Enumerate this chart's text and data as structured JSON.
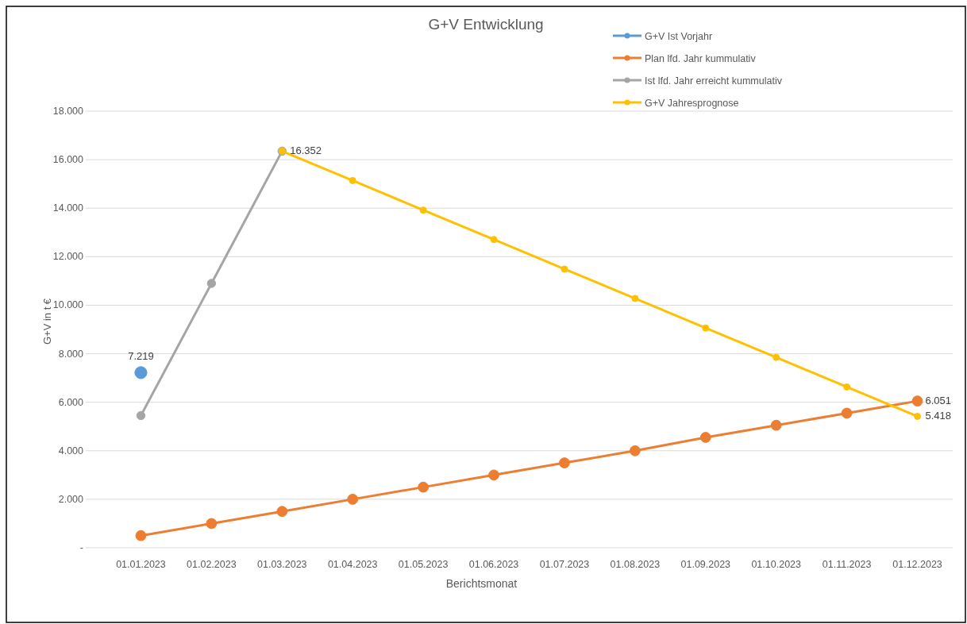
{
  "chart_data": {
    "type": "line",
    "title": "G+V Entwicklung",
    "xlabel": "Berichtsmonat",
    "ylabel": "G+V in t €",
    "categories": [
      "01.01.2023",
      "01.02.2023",
      "01.03.2023",
      "01.04.2023",
      "01.05.2023",
      "01.06.2023",
      "01.07.2023",
      "01.08.2023",
      "01.09.2023",
      "01.10.2023",
      "01.11.2023",
      "01.12.2023"
    ],
    "series": [
      {
        "name": "G+V Ist Vorjahr",
        "color": "#5b9bd5",
        "values": [
          7219,
          null,
          null,
          null,
          null,
          null,
          null,
          null,
          null,
          null,
          null,
          null
        ],
        "value_labels": [
          "7.219",
          null,
          null,
          null,
          null,
          null,
          null,
          null,
          null,
          null,
          null,
          null
        ]
      },
      {
        "name": "Plan lfd. Jahr kummulativ",
        "color": "#ed7d31",
        "values": [
          500,
          1000,
          1500,
          2000,
          2500,
          3000,
          3500,
          4000,
          4550,
          5050,
          5550,
          6051
        ],
        "value_labels": [
          null,
          null,
          null,
          null,
          null,
          null,
          null,
          null,
          null,
          null,
          null,
          "6.051"
        ]
      },
      {
        "name": "Ist lfd. Jahr erreicht kummulativ",
        "color": "#a5a5a5",
        "values": [
          5450,
          10900,
          16352,
          null,
          null,
          null,
          null,
          null,
          null,
          null,
          null,
          null
        ]
      },
      {
        "name": "G+V Jahresprognose",
        "color": "#ffc000",
        "values": [
          null,
          null,
          16352,
          15140,
          13920,
          12710,
          11490,
          10280,
          9060,
          7850,
          6630,
          5418
        ],
        "value_labels": [
          null,
          null,
          "16.352",
          null,
          null,
          null,
          null,
          null,
          null,
          null,
          null,
          "5.418"
        ]
      }
    ],
    "ylim": [
      0,
      18000
    ],
    "yticks": [
      {
        "value": 0,
        "label": "-"
      },
      {
        "value": 2000,
        "label": "2.000"
      },
      {
        "value": 4000,
        "label": "4.000"
      },
      {
        "value": 6000,
        "label": "6.000"
      },
      {
        "value": 8000,
        "label": "8.000"
      },
      {
        "value": 10000,
        "label": "10.000"
      },
      {
        "value": 12000,
        "label": "12.000"
      },
      {
        "value": 14000,
        "label": "14.000"
      },
      {
        "value": 16000,
        "label": "16.000"
      },
      {
        "value": 18000,
        "label": "18.000"
      }
    ],
    "grid": "y",
    "legend": "top right",
    "marker": "circle",
    "line_style": "solid"
  }
}
